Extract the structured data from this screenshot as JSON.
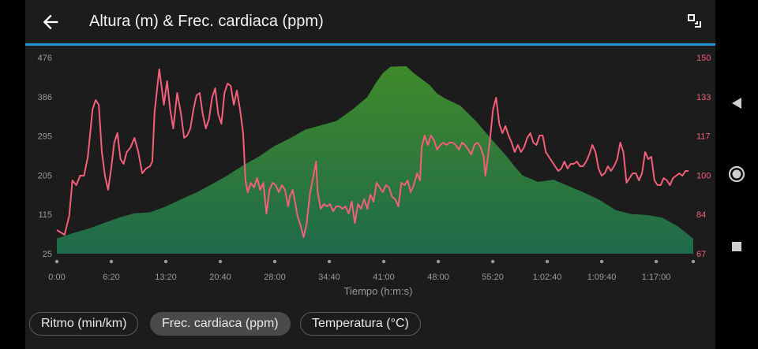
{
  "header": {
    "title": "Altura (m) & Frec. cardiaca (ppm)",
    "back_icon": "arrow-back-icon",
    "expand_icon": "fullscreen-icon"
  },
  "colors": {
    "accent": "#2196d3",
    "hr_line": "#f4607a",
    "altitude_fill_top": "#3f8a2a",
    "altitude_fill_bottom": "#1f6a4a"
  },
  "chart_data": {
    "type": "area",
    "x_axis": {
      "label": "Tiempo (h:m:s)",
      "ticks": [
        "0:00",
        "6:20",
        "13:20",
        "20:40",
        "28:00",
        "34:40",
        "41:00",
        "48:00",
        "55:20",
        "1:02:40",
        "1:09:40",
        "1:17:00"
      ],
      "range_minutes": [
        0,
        82
      ]
    },
    "y_left": {
      "label": "Altura (m)",
      "ticks": [
        "476",
        "386",
        "295",
        "205",
        "115",
        "25"
      ],
      "range": [
        25,
        476
      ]
    },
    "y_right": {
      "label": "Frec. cardiaca (ppm)",
      "ticks": [
        "150",
        "133",
        "117",
        "100",
        "84",
        "67"
      ],
      "range": [
        67,
        150
      ]
    },
    "series": [
      {
        "name": "Altura (m)",
        "kind": "area",
        "points": [
          [
            0,
            60
          ],
          [
            2,
            72
          ],
          [
            4,
            82
          ],
          [
            6,
            95
          ],
          [
            8,
            108
          ],
          [
            10,
            118
          ],
          [
            12,
            120
          ],
          [
            14,
            133
          ],
          [
            16,
            150
          ],
          [
            18,
            166
          ],
          [
            20,
            185
          ],
          [
            22,
            205
          ],
          [
            24,
            228
          ],
          [
            26,
            248
          ],
          [
            28,
            272
          ],
          [
            30,
            290
          ],
          [
            31,
            300
          ],
          [
            32,
            310
          ],
          [
            34,
            320
          ],
          [
            36,
            330
          ],
          [
            38,
            355
          ],
          [
            40,
            385
          ],
          [
            41,
            415
          ],
          [
            42,
            440
          ],
          [
            43,
            455
          ],
          [
            45,
            456
          ],
          [
            46,
            440
          ],
          [
            48,
            413
          ],
          [
            49,
            393
          ],
          [
            50,
            382
          ],
          [
            52,
            365
          ],
          [
            54,
            330
          ],
          [
            56,
            288
          ],
          [
            58,
            248
          ],
          [
            59,
            225
          ],
          [
            60,
            205
          ],
          [
            62,
            190
          ],
          [
            64,
            195
          ],
          [
            66,
            180
          ],
          [
            68,
            165
          ],
          [
            70,
            148
          ],
          [
            72,
            125
          ],
          [
            74,
            116
          ],
          [
            76,
            114
          ],
          [
            78,
            108
          ],
          [
            80,
            88
          ],
          [
            82,
            60
          ]
        ]
      },
      {
        "name": "Frec. cardiaca (ppm)",
        "kind": "line",
        "points": [
          [
            0,
            77
          ],
          [
            1,
            75
          ],
          [
            1.6,
            83
          ],
          [
            2,
            98
          ],
          [
            2.5,
            96
          ],
          [
            3,
            100
          ],
          [
            3.5,
            100
          ],
          [
            4,
            108
          ],
          [
            4.6,
            128
          ],
          [
            5,
            132
          ],
          [
            5.4,
            130
          ],
          [
            5.8,
            110
          ],
          [
            6.2,
            100
          ],
          [
            6.6,
            94
          ],
          [
            7,
            103
          ],
          [
            7.4,
            114
          ],
          [
            7.8,
            118
          ],
          [
            8.2,
            107
          ],
          [
            8.6,
            105
          ],
          [
            9,
            110
          ],
          [
            9.5,
            112
          ],
          [
            10,
            116
          ],
          [
            10.5,
            110
          ],
          [
            11,
            101
          ],
          [
            11.5,
            103
          ],
          [
            12,
            104
          ],
          [
            12.3,
            106
          ],
          [
            12.6,
            127
          ],
          [
            13.2,
            145
          ],
          [
            13.8,
            130
          ],
          [
            14.2,
            140
          ],
          [
            14.6,
            128
          ],
          [
            15,
            120
          ],
          [
            15.5,
            135
          ],
          [
            16,
            126
          ],
          [
            16.4,
            116
          ],
          [
            16.8,
            117
          ],
          [
            17.2,
            120
          ],
          [
            17.6,
            128
          ],
          [
            18,
            134
          ],
          [
            18.4,
            135
          ],
          [
            18.8,
            126
          ],
          [
            19.2,
            120
          ],
          [
            19.6,
            124
          ],
          [
            20,
            133
          ],
          [
            20.4,
            137
          ],
          [
            20.8,
            126
          ],
          [
            21.2,
            122
          ],
          [
            21.6,
            135
          ],
          [
            22,
            139
          ],
          [
            22.4,
            138
          ],
          [
            22.8,
            130
          ],
          [
            23.2,
            136
          ],
          [
            23.6,
            128
          ],
          [
            24,
            118
          ],
          [
            24.3,
            98
          ],
          [
            24.6,
            93
          ],
          [
            25,
            97
          ],
          [
            25.4,
            95
          ],
          [
            25.8,
            99
          ],
          [
            26.2,
            94
          ],
          [
            26.6,
            97
          ],
          [
            27,
            84
          ],
          [
            27.4,
            94
          ],
          [
            27.8,
            97
          ],
          [
            28.2,
            96
          ],
          [
            28.6,
            93
          ],
          [
            29,
            96
          ],
          [
            29.4,
            94
          ],
          [
            29.8,
            87
          ],
          [
            30,
            91
          ],
          [
            30.4,
            94
          ],
          [
            30.8,
            87
          ],
          [
            31,
            83
          ],
          [
            31.4,
            79
          ],
          [
            31.8,
            74
          ],
          [
            32.2,
            80
          ],
          [
            32.6,
            92
          ],
          [
            33,
            99
          ],
          [
            33.4,
            106
          ],
          [
            33.6,
            93
          ],
          [
            34,
            86
          ],
          [
            34.4,
            88
          ],
          [
            34.8,
            87
          ],
          [
            35.2,
            88
          ],
          [
            35.6,
            85
          ],
          [
            36,
            87
          ],
          [
            36.4,
            87
          ],
          [
            36.8,
            86
          ],
          [
            37.2,
            87
          ],
          [
            37.6,
            84
          ],
          [
            38,
            89
          ],
          [
            38.4,
            80
          ],
          [
            38.8,
            88
          ],
          [
            39.2,
            86
          ],
          [
            39.6,
            90
          ],
          [
            40,
            86
          ],
          [
            40.4,
            92
          ],
          [
            40.8,
            89
          ],
          [
            41.2,
            97
          ],
          [
            41.6,
            95
          ],
          [
            42,
            93
          ],
          [
            42.4,
            96
          ],
          [
            42.8,
            95
          ],
          [
            43.2,
            91
          ],
          [
            43.6,
            90
          ],
          [
            44,
            87
          ],
          [
            44.4,
            97
          ],
          [
            44.8,
            96
          ],
          [
            45.2,
            98
          ],
          [
            45.6,
            93
          ],
          [
            46,
            96
          ],
          [
            46.4,
            101
          ],
          [
            46.8,
            98
          ],
          [
            47,
            112
          ],
          [
            47.4,
            117
          ],
          [
            47.8,
            113
          ],
          [
            48.2,
            117
          ],
          [
            48.6,
            115
          ],
          [
            49,
            111
          ],
          [
            49.4,
            113
          ],
          [
            49.8,
            114
          ],
          [
            50.2,
            113
          ],
          [
            50.6,
            114
          ],
          [
            51,
            114
          ],
          [
            51.4,
            113
          ],
          [
            51.8,
            111
          ],
          [
            52.2,
            114
          ],
          [
            52.6,
            113
          ],
          [
            53,
            111
          ],
          [
            53.4,
            109
          ],
          [
            53.8,
            113
          ],
          [
            54.2,
            114
          ],
          [
            54.6,
            112
          ],
          [
            55,
            108
          ],
          [
            55.2,
            100
          ],
          [
            55.4,
            104
          ],
          [
            55.8,
            115
          ],
          [
            56.2,
            128
          ],
          [
            56.6,
            133
          ],
          [
            57,
            122
          ],
          [
            57.4,
            118
          ],
          [
            57.8,
            121
          ],
          [
            58.2,
            117
          ],
          [
            58.6,
            114
          ],
          [
            59,
            110
          ],
          [
            59.4,
            113
          ],
          [
            59.8,
            110
          ],
          [
            60.2,
            112
          ],
          [
            60.6,
            116
          ],
          [
            61,
            118
          ],
          [
            61.4,
            114
          ],
          [
            61.8,
            113
          ],
          [
            62.2,
            117
          ],
          [
            62.6,
            117
          ],
          [
            63,
            110
          ],
          [
            63.4,
            108
          ],
          [
            63.8,
            106
          ],
          [
            64.2,
            104
          ],
          [
            64.6,
            102
          ],
          [
            65,
            103
          ],
          [
            65.4,
            106
          ],
          [
            65.8,
            103
          ],
          [
            66.2,
            105
          ],
          [
            66.6,
            105
          ],
          [
            67,
            106
          ],
          [
            67.4,
            104
          ],
          [
            67.8,
            104
          ],
          [
            68.2,
            106
          ],
          [
            68.6,
            109
          ],
          [
            69,
            113
          ],
          [
            69.4,
            110
          ],
          [
            69.8,
            103
          ],
          [
            70.2,
            100
          ],
          [
            70.6,
            101
          ],
          [
            71,
            104
          ],
          [
            71.4,
            102
          ],
          [
            71.8,
            104
          ],
          [
            72.2,
            107
          ],
          [
            72.6,
            114
          ],
          [
            73,
            110
          ],
          [
            73.4,
            97
          ],
          [
            73.8,
            99
          ],
          [
            74.2,
            101
          ],
          [
            74.6,
            101
          ],
          [
            75,
            98
          ],
          [
            75.4,
            101
          ],
          [
            75.8,
            110
          ],
          [
            76.2,
            107
          ],
          [
            76.6,
            108
          ],
          [
            77,
            98
          ],
          [
            77.4,
            96
          ],
          [
            77.8,
            96
          ],
          [
            78.2,
            99
          ],
          [
            78.6,
            98
          ],
          [
            79,
            96
          ],
          [
            79.4,
            99
          ],
          [
            79.8,
            100
          ],
          [
            80.2,
            101
          ],
          [
            80.6,
            100
          ],
          [
            81,
            102
          ],
          [
            81.4,
            102
          ]
        ]
      }
    ]
  },
  "chips": [
    {
      "label": "Ritmo (min/km)",
      "selected": false
    },
    {
      "label": "Frec. cardiaca (ppm)",
      "selected": true
    },
    {
      "label": "Temperatura (°C)",
      "selected": false
    }
  ],
  "system_nav": {
    "back_icon": "nav-back-icon",
    "home_icon": "nav-home-icon",
    "recents_icon": "nav-recents-icon"
  }
}
